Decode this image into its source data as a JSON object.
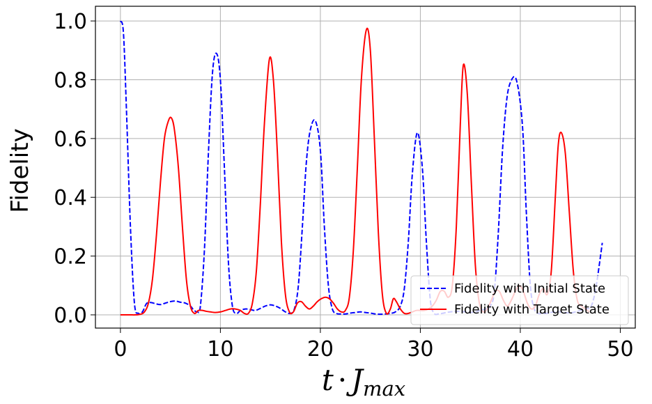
{
  "chart_data": {
    "type": "line",
    "title": "",
    "xlabel": {
      "var": "t",
      "op": "·",
      "sym": "J",
      "sub": "max"
    },
    "ylabel": "Fidelity",
    "xlim": [
      -2.5,
      51.5
    ],
    "ylim": [
      -0.045,
      1.05
    ],
    "xticks": [
      0,
      10,
      20,
      30,
      40,
      50
    ],
    "xtick_labels": [
      "0",
      "10",
      "20",
      "30",
      "40",
      "50"
    ],
    "yticks": [
      0.0,
      0.2,
      0.4,
      0.6,
      0.8,
      1.0
    ],
    "ytick_labels": [
      "0.0",
      "0.2",
      "0.4",
      "0.6",
      "0.8",
      "1.0"
    ],
    "grid": true,
    "legend_position": "lower-right",
    "series": [
      {
        "name": "Fidelity with Initial State",
        "color": "#0000ff",
        "style": "dashed",
        "x": [
          0,
          0.3,
          0.6,
          1.0,
          1.4,
          1.8,
          2.2,
          2.6,
          3.0,
          3.5,
          4.0,
          4.5,
          5.0,
          5.5,
          6.0,
          6.5,
          7.0,
          7.3,
          7.7,
          8.0,
          8.4,
          8.8,
          9.2,
          9.6,
          10.0,
          10.4,
          10.8,
          11.2,
          11.6,
          12.0,
          12.5,
          13.0,
          13.5,
          14.0,
          14.5,
          15.0,
          15.5,
          16.0,
          16.5,
          17.0,
          17.4,
          17.8,
          18.2,
          18.6,
          19.0,
          19.5,
          20.0,
          20.4,
          20.8,
          21.2,
          21.6,
          22.0,
          22.5,
          23.0,
          23.5,
          24.0,
          24.5,
          25.0,
          25.5,
          26.0,
          26.5,
          27.0,
          27.5,
          28.0,
          28.4,
          28.8,
          29.2,
          29.7,
          30.2,
          30.6,
          31.0,
          31.4,
          31.8,
          32.2,
          32.6,
          33.0,
          33.5,
          34.0,
          34.5,
          35.0,
          35.5,
          36.0,
          36.5,
          37.0,
          37.4,
          37.8,
          38.2,
          38.6,
          39.0,
          39.6,
          40.2,
          40.6,
          41.0,
          41.4,
          41.8,
          42.2,
          42.6,
          43.0,
          43.5,
          44.0,
          44.5,
          45.0,
          45.5,
          46.0,
          46.5,
          47.0,
          47.3,
          47.6,
          47.9,
          48.2
        ],
        "y": [
          1.0,
          0.96,
          0.7,
          0.3,
          0.04,
          0.005,
          0.01,
          0.038,
          0.042,
          0.038,
          0.035,
          0.04,
          0.045,
          0.047,
          0.043,
          0.04,
          0.03,
          0.018,
          0.01,
          0.03,
          0.22,
          0.55,
          0.82,
          0.89,
          0.8,
          0.5,
          0.18,
          0.03,
          0.005,
          0.015,
          0.02,
          0.018,
          0.015,
          0.022,
          0.03,
          0.034,
          0.03,
          0.022,
          0.01,
          0.005,
          0.02,
          0.1,
          0.3,
          0.52,
          0.63,
          0.66,
          0.56,
          0.3,
          0.1,
          0.02,
          0.005,
          0.003,
          0.003,
          0.006,
          0.008,
          0.01,
          0.008,
          0.006,
          0.003,
          0.002,
          0.003,
          0.005,
          0.01,
          0.03,
          0.09,
          0.25,
          0.48,
          0.62,
          0.5,
          0.25,
          0.05,
          0.005,
          0.003,
          0.005,
          0.008,
          0.01,
          0.012,
          0.012,
          0.01,
          0.008,
          0.01,
          0.015,
          0.02,
          0.03,
          0.08,
          0.28,
          0.55,
          0.72,
          0.79,
          0.8,
          0.65,
          0.35,
          0.1,
          0.02,
          0.005,
          0.005,
          0.005,
          0.008,
          0.01,
          0.01,
          0.008,
          0.006,
          0.01,
          0.015,
          0.02,
          0.025,
          0.05,
          0.1,
          0.17,
          0.245
        ]
      },
      {
        "name": "Fidelity with Target State",
        "color": "#ff0000",
        "style": "solid",
        "x": [
          0,
          0.5,
          1.0,
          1.5,
          2.0,
          2.4,
          2.8,
          3.2,
          3.6,
          4.0,
          4.4,
          4.8,
          5.1,
          5.4,
          5.8,
          6.2,
          6.6,
          7.0,
          7.4,
          7.8,
          8.2,
          8.6,
          9.0,
          9.5,
          10.0,
          10.5,
          11.0,
          11.5,
          12.0,
          12.4,
          12.8,
          13.2,
          13.6,
          14.0,
          14.4,
          14.9,
          15.3,
          15.7,
          16.1,
          16.5,
          16.9,
          17.3,
          17.7,
          18.1,
          18.5,
          18.9,
          19.3,
          19.7,
          20.1,
          20.5,
          20.9,
          21.3,
          21.7,
          22.1,
          22.5,
          22.9,
          23.3,
          23.7,
          24.1,
          24.6,
          25.0,
          25.4,
          25.8,
          26.2,
          26.6,
          27.0,
          27.3,
          27.6,
          28.0,
          28.4,
          28.8,
          29.2,
          29.6,
          30.0,
          30.4,
          30.8,
          31.2,
          31.6,
          32.0,
          32.4,
          32.8,
          33.2,
          33.6,
          34.0,
          34.3,
          34.7,
          35.1,
          35.5,
          35.9,
          36.3,
          36.7,
          37.1,
          37.5,
          37.9,
          38.3,
          38.7,
          39.1,
          39.5,
          39.9,
          40.3,
          40.7,
          41.1,
          41.5,
          41.9,
          42.3,
          42.7,
          43.1,
          43.5,
          43.8,
          44.1,
          44.5,
          44.9,
          45.3,
          45.7,
          46.1,
          46.5,
          46.9
        ],
        "y": [
          0.0,
          0.0,
          0.0,
          0.0,
          0.002,
          0.01,
          0.04,
          0.12,
          0.27,
          0.45,
          0.6,
          0.66,
          0.67,
          0.63,
          0.5,
          0.3,
          0.12,
          0.03,
          0.005,
          0.015,
          0.015,
          0.012,
          0.01,
          0.008,
          0.01,
          0.015,
          0.02,
          0.02,
          0.015,
          0.005,
          0.005,
          0.04,
          0.15,
          0.38,
          0.65,
          0.87,
          0.8,
          0.55,
          0.25,
          0.07,
          0.01,
          0.01,
          0.04,
          0.045,
          0.03,
          0.02,
          0.03,
          0.045,
          0.055,
          0.06,
          0.055,
          0.04,
          0.02,
          0.01,
          0.015,
          0.06,
          0.22,
          0.5,
          0.8,
          0.97,
          0.9,
          0.6,
          0.28,
          0.07,
          0.005,
          0.02,
          0.055,
          0.045,
          0.02,
          0.005,
          0.005,
          0.01,
          0.015,
          0.015,
          0.015,
          0.02,
          0.03,
          0.05,
          0.08,
          0.08,
          0.06,
          0.1,
          0.3,
          0.65,
          0.85,
          0.75,
          0.45,
          0.17,
          0.04,
          0.01,
          0.02,
          0.05,
          0.08,
          0.08,
          0.05,
          0.03,
          0.05,
          0.08,
          0.1,
          0.08,
          0.04,
          0.02,
          0.03,
          0.07,
          0.09,
          0.07,
          0.15,
          0.4,
          0.58,
          0.62,
          0.55,
          0.35,
          0.15,
          0.05,
          0.03,
          0.02,
          0.01
        ]
      }
    ]
  }
}
